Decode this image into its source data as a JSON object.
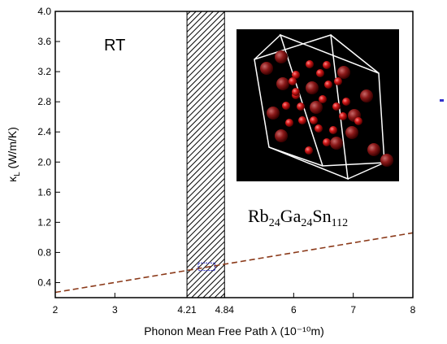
{
  "chart_data": {
    "type": "line",
    "xlabel": "Phonon Mean Free Path λ (10⁻¹⁰m)",
    "ylabel_main": "κ",
    "ylabel_sub": "L",
    "ylabel_unit": " (W/m/K)",
    "xlim": [
      2,
      8
    ],
    "ylim": [
      0.2,
      4.0
    ],
    "xticks": [
      {
        "value": 2,
        "label": "2"
      },
      {
        "value": 3,
        "label": "3"
      },
      {
        "value": 4.21,
        "label": "4.21"
      },
      {
        "value": 4.84,
        "label": "4.84"
      },
      {
        "value": 6,
        "label": "6"
      },
      {
        "value": 7,
        "label": "7"
      },
      {
        "value": 8,
        "label": "8"
      }
    ],
    "yticks": [
      "0.4",
      "0.8",
      "1.2",
      "1.6",
      "2.0",
      "2.4",
      "2.8",
      "3.2",
      "3.6",
      "4.0"
    ],
    "series": [
      {
        "x": [
          2,
          8
        ],
        "y": [
          0.27,
          1.06
        ],
        "color": "#8b3a1a",
        "style": "dashed"
      }
    ],
    "highlight_band": {
      "x": [
        4.21,
        4.84
      ]
    },
    "marker_box": {
      "x": [
        4.4,
        4.68
      ],
      "y": [
        0.56,
        0.66
      ],
      "color": "#3333cc"
    },
    "annotation": "RT",
    "formula": {
      "parts": [
        {
          "text": "Rb",
          "sub": false
        },
        {
          "text": "24",
          "sub": true
        },
        {
          "text": "Ga",
          "sub": false
        },
        {
          "text": "24",
          "sub": true
        },
        {
          "text": "Sn",
          "sub": false
        },
        {
          "text": "112",
          "sub": true
        }
      ]
    },
    "grid": false
  },
  "inset": {
    "background": "#000000",
    "atom_color": "#cc1a1a",
    "frame_color": "#ffffff"
  },
  "edge_mark_color": "#3333cc"
}
